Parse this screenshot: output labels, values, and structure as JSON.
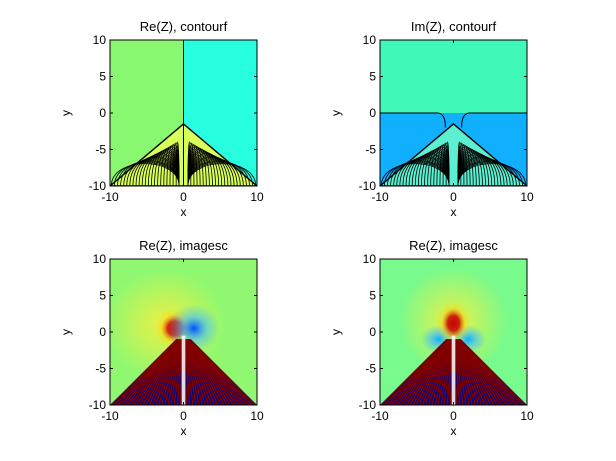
{
  "chart_data": [
    {
      "type": "heatmap",
      "title": "Re(Z), contourf",
      "xlabel": "x",
      "ylabel": "y",
      "xlim": [
        -10,
        10
      ],
      "ylim": [
        -10,
        10
      ],
      "xticks": [
        "-10",
        "0",
        "10"
      ],
      "yticks": [
        "10",
        "5",
        "0",
        "-5",
        "-10"
      ],
      "colors": {
        "left": "#88f870",
        "right": "#28ffe0",
        "bands": "#d8ff5a",
        "dense": "#000000"
      }
    },
    {
      "type": "heatmap",
      "title": "Im(Z), contourf",
      "xlabel": "x",
      "ylabel": "y",
      "xlim": [
        -10,
        10
      ],
      "ylim": [
        -10,
        10
      ],
      "xticks": [
        "-10",
        "0",
        "10"
      ],
      "yticks": [
        "10",
        "5",
        "0",
        "-5",
        "-10"
      ],
      "colors": {
        "top": "#40f8b8",
        "bottom": "#10b0ff",
        "bands": "#5cf0d0",
        "dense": "#000000"
      }
    },
    {
      "type": "heatmap",
      "title": "Re(Z), imagesc",
      "xlabel": "x",
      "ylabel": "y",
      "xlim": [
        -10,
        10
      ],
      "ylim": [
        -10,
        10
      ],
      "xticks": [
        "-10",
        "0",
        "10"
      ],
      "yticks": [
        "10",
        "5",
        "0",
        "-5",
        "-10"
      ],
      "colors": {
        "background": "#90f870",
        "warm": "#d00000",
        "cold": "#0050ff",
        "stripe_a": "#800000",
        "stripe_b": "#000080"
      }
    },
    {
      "type": "heatmap",
      "title": "Re(Z), imagesc",
      "xlabel": "x",
      "ylabel": "y",
      "xlim": [
        -10,
        10
      ],
      "ylim": [
        -10,
        10
      ],
      "xticks": [
        "-10",
        "0",
        "10"
      ],
      "yticks": [
        "10",
        "5",
        "0",
        "-5",
        "-10"
      ],
      "colors": {
        "background": "#78fa8c",
        "warm": "#c80000",
        "cold": "#10b0ff",
        "stripe_a": "#800000",
        "stripe_b": "#000080"
      }
    }
  ]
}
